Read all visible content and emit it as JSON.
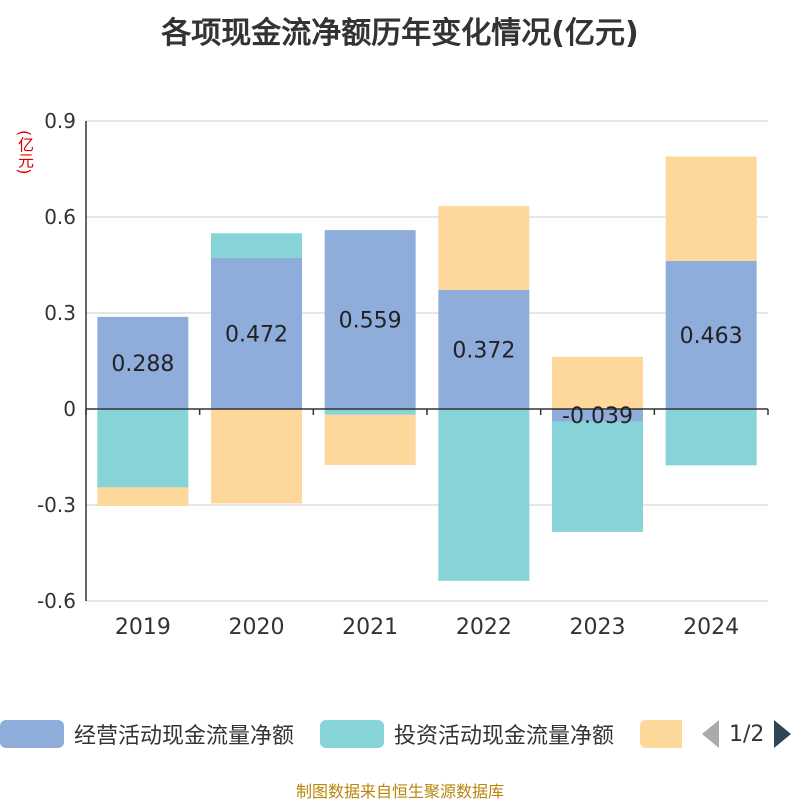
{
  "chart_data": {
    "type": "bar",
    "title": "各项现金流净额历年变化情况(亿元)",
    "ylabel": "(亿元)",
    "categories": [
      "2019",
      "2020",
      "2021",
      "2022",
      "2023",
      "2024"
    ],
    "ylim": [
      -0.6,
      0.9
    ],
    "yticks": [
      "0.9",
      "0.6",
      "0.3",
      "0",
      "-0.3",
      "-0.6"
    ],
    "ytick_values": [
      0.9,
      0.6,
      0.3,
      0,
      -0.3,
      -0.6
    ],
    "stacked": true,
    "series": [
      {
        "name": "经营活动现金流量净额",
        "color": "#8eaddb",
        "values": [
          0.288,
          0.472,
          0.559,
          0.372,
          -0.039,
          0.463
        ],
        "labels": [
          "0.288",
          "0.472",
          "0.559",
          "0.372",
          "-0.039",
          "0.463"
        ]
      },
      {
        "name": "投资活动现金流量净额",
        "color": "#86d4d7",
        "values": [
          -0.245,
          0.077,
          -0.018,
          -0.537,
          -0.345,
          -0.176
        ]
      },
      {
        "name": "",
        "color": "#fed79b",
        "values": [
          -0.058,
          -0.295,
          -0.157,
          0.262,
          0.163,
          0.326
        ]
      }
    ],
    "legend_position": "bottom",
    "grid": true
  },
  "legend": {
    "item1": "经营活动现金流量净额",
    "item2": "投资活动现金流量净额",
    "pager": "1/2"
  },
  "source": "制图数据来自恒生聚源数据库"
}
